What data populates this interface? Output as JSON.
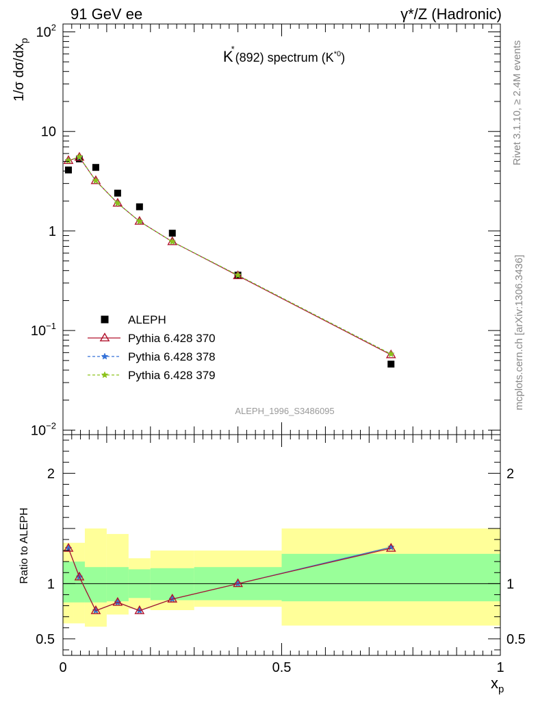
{
  "header": {
    "left_label": "91 GeV ee",
    "right_label": "γ*/Z (Hadronic)"
  },
  "side_labels": {
    "rivet": "Rivet 3.1.10, ≥ 2.4M events",
    "mcplots": "mcplots.cern.ch [arXiv:1306.3436]"
  },
  "chart_data": [
    {
      "type": "scatter",
      "title": "K* (892) spectrum (K*0)",
      "title_parts": {
        "k": "K",
        "star": "*",
        "mid": "(892) spectrum (K",
        "sup": "*0",
        "end": ")"
      },
      "ylabel": "1/σ dσ/dx",
      "ylabel_sub": "p",
      "y_scale": "log",
      "ylim": [
        0.009,
        120
      ],
      "xlim": [
        0,
        1
      ],
      "yticks": [
        {
          "v": 100,
          "base": "10",
          "exp": "2"
        },
        {
          "v": 10,
          "base": "10",
          "exp": ""
        },
        {
          "v": 1,
          "base": "1",
          "exp": ""
        },
        {
          "v": 0.1,
          "base": "10",
          "exp": "−1"
        },
        {
          "v": 0.01,
          "base": "10",
          "exp": "−2"
        }
      ],
      "watermark": "ALEPH_1996_S3486095",
      "legend_position": "middle-left",
      "series": [
        {
          "name": "ALEPH",
          "marker": "square",
          "color": "#000000",
          "x": [
            0.0125,
            0.0375,
            0.075,
            0.125,
            0.175,
            0.25,
            0.4,
            0.75
          ],
          "y": [
            4.1,
            5.3,
            4.35,
            2.4,
            1.75,
            0.95,
            0.36,
            0.046
          ]
        },
        {
          "name": "Pythia 6.428 370",
          "marker": "triangle",
          "color": "#b0102b",
          "dash": "solid",
          "x": [
            0.0125,
            0.0375,
            0.075,
            0.125,
            0.175,
            0.25,
            0.4,
            0.75
          ],
          "y": [
            5.1,
            5.5,
            3.2,
            1.9,
            1.25,
            0.78,
            0.355,
            0.057
          ]
        },
        {
          "name": "Pythia 6.428 378",
          "marker": "star",
          "color": "#3572d8",
          "dash": "dashed",
          "x": [
            0.0125,
            0.0375,
            0.075,
            0.125,
            0.175,
            0.25,
            0.4,
            0.75
          ],
          "y": [
            5.1,
            5.5,
            3.2,
            1.9,
            1.25,
            0.78,
            0.36,
            0.058
          ]
        },
        {
          "name": "Pythia 6.428 379",
          "marker": "star",
          "color": "#8cc21b",
          "dash": "dashed",
          "x": [
            0.0125,
            0.0375,
            0.075,
            0.125,
            0.175,
            0.25,
            0.4,
            0.75
          ],
          "y": [
            5.1,
            5.55,
            3.2,
            1.9,
            1.25,
            0.78,
            0.36,
            0.058
          ]
        }
      ]
    },
    {
      "type": "line",
      "ylabel": "Ratio to ALEPH",
      "xlabel": "x",
      "xlabel_sub": "p",
      "xlim": [
        0,
        1
      ],
      "ylim": [
        0.35,
        2.35
      ],
      "xticks": [
        {
          "v": 0,
          "label": "0"
        },
        {
          "v": 0.5,
          "label": "0.5"
        },
        {
          "v": 1,
          "label": "1"
        }
      ],
      "yticks": [
        {
          "v": 0.5,
          "label": "0.5"
        },
        {
          "v": 1,
          "label": "1"
        },
        {
          "v": 2,
          "label": "2"
        }
      ],
      "bins": [
        [
          0,
          0.025
        ],
        [
          0.025,
          0.05
        ],
        [
          0.05,
          0.1
        ],
        [
          0.1,
          0.15
        ],
        [
          0.15,
          0.2
        ],
        [
          0.2,
          0.3
        ],
        [
          0.3,
          0.5
        ],
        [
          0.5,
          1.0
        ]
      ],
      "band_stat": [
        [
          0.83,
          1.2
        ],
        [
          0.83,
          1.2
        ],
        [
          0.83,
          1.15
        ],
        [
          0.84,
          1.15
        ],
        [
          0.87,
          1.13
        ],
        [
          0.85,
          1.14
        ],
        [
          0.85,
          1.15
        ],
        [
          0.84,
          1.27
        ]
      ],
      "band_total": [
        [
          0.64,
          1.37
        ],
        [
          0.64,
          1.37
        ],
        [
          0.61,
          1.5
        ],
        [
          0.72,
          1.45
        ],
        [
          0.77,
          1.23
        ],
        [
          0.76,
          1.3
        ],
        [
          0.79,
          1.3
        ],
        [
          0.62,
          1.5
        ]
      ],
      "series": [
        {
          "name": "Pythia 6.428 370",
          "color": "#b0102b",
          "marker": "triangle",
          "x": [
            0.0125,
            0.0375,
            0.075,
            0.125,
            0.175,
            0.25,
            0.4,
            0.75
          ],
          "y": [
            1.32,
            1.06,
            0.755,
            0.83,
            0.755,
            0.86,
            1.0,
            1.32
          ]
        },
        {
          "name": "Pythia 6.428 378",
          "color": "#3572d8",
          "marker": "star",
          "x": [
            0.0125,
            0.0375,
            0.075,
            0.125,
            0.175,
            0.25,
            0.4,
            0.75
          ],
          "y": [
            1.32,
            1.06,
            0.755,
            0.83,
            0.755,
            0.86,
            1.0,
            1.33
          ]
        },
        {
          "name": "Pythia 6.428 379",
          "color": "#8cc21b",
          "marker": "star",
          "x": [
            0.0125,
            0.0375,
            0.075,
            0.125,
            0.175,
            0.25,
            0.4,
            0.75
          ],
          "y": [
            1.32,
            1.06,
            0.755,
            0.83,
            0.755,
            0.86,
            1.0,
            1.33
          ]
        }
      ]
    }
  ],
  "colors": {
    "band_stat": "#99ff99",
    "band_total": "#ffff99",
    "frame": "#000000"
  }
}
